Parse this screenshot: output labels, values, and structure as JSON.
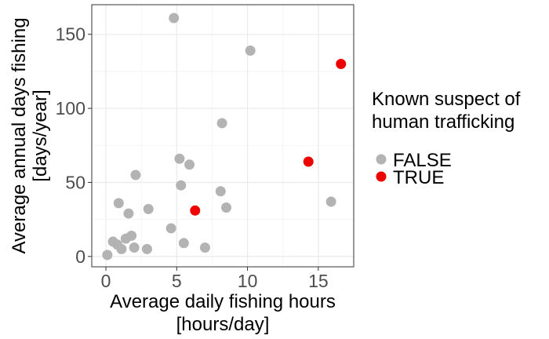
{
  "chart_data": {
    "type": "scatter",
    "title": "",
    "xlabel": [
      "Average daily fishing hours",
      "[hours/day]"
    ],
    "ylabel": [
      "Average annual days fishing",
      "[days/year]"
    ],
    "xlim": [
      -1,
      17.5
    ],
    "ylim": [
      -7,
      170
    ],
    "xticks": [
      0,
      5,
      10,
      15
    ],
    "yticks": [
      0,
      50,
      100,
      150
    ],
    "xtick_labels": [
      "0",
      "5",
      "10",
      "15"
    ],
    "ytick_labels": [
      "0",
      "50",
      "100",
      "150"
    ],
    "grid": true,
    "legend": {
      "title": [
        "Known suspect of",
        "human trafficking"
      ],
      "position": "right"
    },
    "series": [
      {
        "name": "FALSE",
        "color": "#b3b3b3",
        "x": [
          0.1,
          0.5,
          0.8,
          0.9,
          1.1,
          1.4,
          1.6,
          1.8,
          2.0,
          2.1,
          2.9,
          3.0,
          4.6,
          4.8,
          5.2,
          5.3,
          5.5,
          5.9,
          7.0,
          8.1,
          8.2,
          8.5,
          10.2,
          15.9
        ],
        "y": [
          1,
          10,
          8,
          36,
          5,
          12,
          29,
          14,
          6,
          55,
          5,
          32,
          19,
          161,
          66,
          48,
          9,
          62,
          6,
          44,
          90,
          33,
          139,
          37
        ]
      },
      {
        "name": "TRUE",
        "color": "#ee0000",
        "x": [
          6.3,
          14.3,
          16.6
        ],
        "y": [
          31,
          64,
          130
        ]
      }
    ]
  }
}
